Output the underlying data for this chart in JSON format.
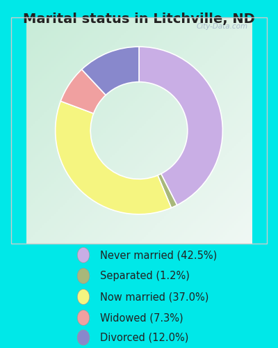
{
  "title": "Marital status in Litchville, ND",
  "slices": [
    42.5,
    1.2,
    37.0,
    7.3,
    12.0
  ],
  "labels": [
    "Never married (42.5%)",
    "Separated (1.2%)",
    "Now married (37.0%)",
    "Widowed (7.3%)",
    "Divorced (12.0%)"
  ],
  "colors": [
    "#c9aee5",
    "#a8b87a",
    "#f5f580",
    "#f0a0a0",
    "#8888cc"
  ],
  "bg_outer": "#00e8e8",
  "bg_chart_color1": "#c8ecd8",
  "bg_chart_color2": "#f0f8f4",
  "donut_width": 0.42,
  "start_angle": 90,
  "title_fontsize": 14,
  "legend_fontsize": 10.5,
  "watermark": "City-Data.com"
}
